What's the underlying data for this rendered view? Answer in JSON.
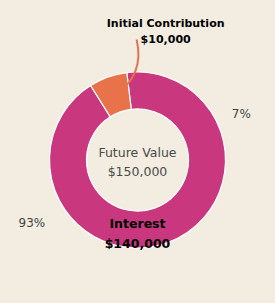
{
  "chart_data": {
    "type": "donut",
    "values": [
      93,
      7
    ],
    "value_labels": [
      "93%",
      "7%"
    ],
    "colors": [
      "#c9387e",
      "#e8724a"
    ],
    "data_labels": true,
    "annotations": [
      "Future Value",
      "$150,000",
      "Interest",
      "$140,000",
      "Initial Contribution",
      "$10,000"
    ]
  }
}
